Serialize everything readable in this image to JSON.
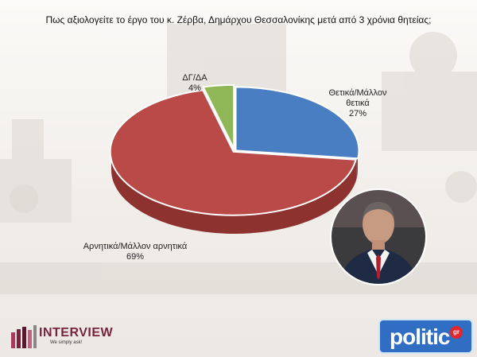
{
  "chart_data": {
    "type": "pie",
    "title": "Πως αξιολογείτε το έργο του κ. Ζέρβα, Δημάρχου Θεσσαλονίκης μετά από 3 χρόνια θητείας;",
    "slices": [
      {
        "name": "Θετικά/Μάλλον θετικά",
        "label_lines": [
          "Θετικά/Μάλλον",
          "θετικά"
        ],
        "value": 27,
        "value_label": "27%",
        "color": "#4a7ec2",
        "side": "#34609a"
      },
      {
        "name": "Αρνητικά/Μάλλον αρνητικά",
        "label_lines": [
          "Αρνητικά/Μάλλον αρνητικά"
        ],
        "value": 69,
        "value_label": "69%",
        "color": "#b94a48",
        "side": "#8e3230"
      },
      {
        "name": "ΔΓ/ΔΑ",
        "label_lines": [
          "ΔΓ/ΔΑ"
        ],
        "value": 4,
        "value_label": "4%",
        "color": "#8fb657",
        "side": "#6b8c3c"
      }
    ]
  },
  "logos": {
    "interview_name": "INTERVIEW",
    "interview_tagline": "We simply ask!",
    "politic_name": "politic",
    "politic_suffix": "gr"
  },
  "photo": {
    "icon": "mayor-portrait-photo"
  }
}
